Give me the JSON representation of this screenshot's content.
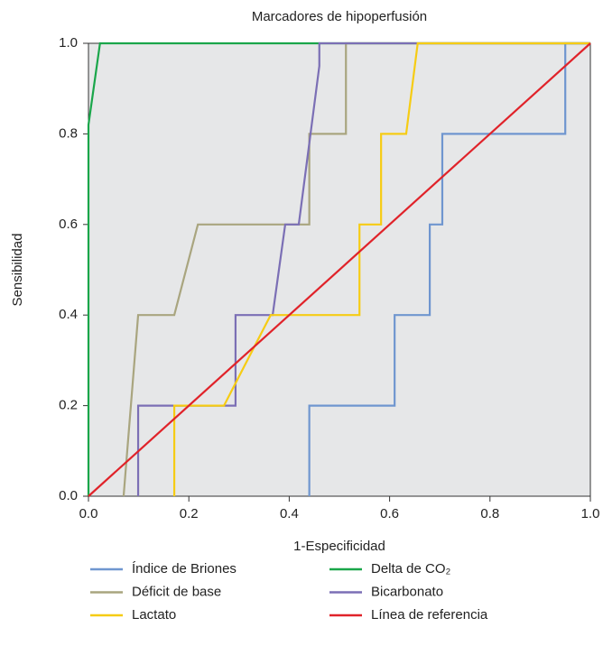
{
  "chart_data": {
    "type": "line",
    "title": "Marcadores de hipoperfusión",
    "x_label": "1-Especificidad",
    "y_label": "Sensibilidad",
    "xlim": [
      0,
      1
    ],
    "ylim": [
      0,
      1
    ],
    "xticks": [
      {
        "value": 0,
        "label": "0.0"
      },
      0.2,
      0.4,
      0.6,
      0.8,
      {
        "value": 1,
        "label": "1.0"
      }
    ],
    "yticks": [
      {
        "value": 0,
        "label": "0.0"
      },
      0.2,
      0.4,
      0.6,
      0.8,
      {
        "value": 1,
        "label": "1.0"
      }
    ],
    "background": "#e6e7e8",
    "series": [
      {
        "name": "Índice de Briones",
        "color": "#6f96cf",
        "x": [
          0.44,
          0.44,
          0.61,
          0.61,
          0.68,
          0.68,
          0.705,
          0.705,
          0.95,
          0.95,
          1.0
        ],
        "values": [
          0,
          0.2,
          0.2,
          0.4,
          0.4,
          0.6,
          0.6,
          0.8,
          0.8,
          1.0,
          1.0
        ]
      },
      {
        "name": "Delta de CO₂",
        "color": "#1aa64a",
        "x": [
          0,
          0,
          0.023,
          1.0
        ],
        "values": [
          0,
          0.82,
          1.0,
          1.0
        ]
      },
      {
        "name": "Déficit de base",
        "color": "#a9a57f",
        "x": [
          0.07,
          0.099,
          0.171,
          0.218,
          0.44,
          0.44,
          0.513,
          0.513,
          1.0
        ],
        "values": [
          0,
          0.4,
          0.4,
          0.6,
          0.6,
          0.8,
          0.8,
          1.0,
          1.0
        ]
      },
      {
        "name": "Bicarbonato",
        "color": "#7b6fb5",
        "x": [
          0.099,
          0.099,
          0.293,
          0.293,
          0.367,
          0.392,
          0.419,
          0.46,
          0.46,
          1.0
        ],
        "values": [
          0,
          0.2,
          0.2,
          0.4,
          0.4,
          0.6,
          0.6,
          0.95,
          1.0,
          1.0
        ]
      },
      {
        "name": "Lactato",
        "color": "#f6cc14",
        "x": [
          0.171,
          0.171,
          0.27,
          0.363,
          0.54,
          0.54,
          0.583,
          0.583,
          0.633,
          0.656,
          1.0
        ],
        "values": [
          0,
          0.2,
          0.2,
          0.4,
          0.4,
          0.6,
          0.6,
          0.8,
          0.8,
          1.0,
          1.0
        ]
      },
      {
        "name": "Línea de referencia",
        "color": "#e0232a",
        "x": [
          0,
          1.0
        ],
        "values": [
          0,
          1.0
        ]
      }
    ]
  }
}
